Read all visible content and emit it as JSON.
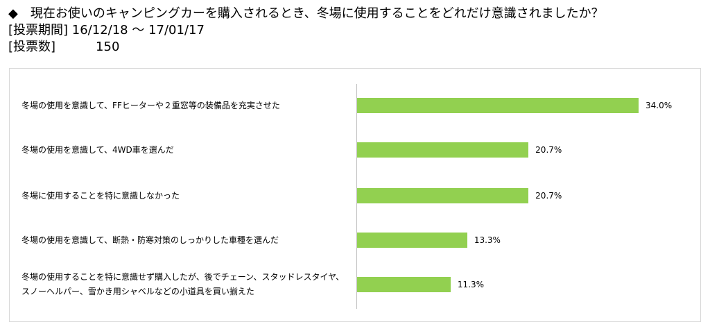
{
  "header": {
    "question": "◆　現在お使いのキャンピングカーを購入されるとき、冬場に使用することをどれだけ意識されましたか？",
    "period_label": "[投票期間]",
    "period_value": "16/12/18 ～ 17/01/17",
    "votes_label": "[投票数]",
    "votes_value": "150"
  },
  "chart_data": {
    "type": "bar",
    "orientation": "horizontal",
    "categories": [
      "冬場の使用を意識して、FFヒーターや２重窓等の装備品を充実させた",
      "冬場の使用を意識して、4WD車を選んだ",
      "冬場に使用することを特に意識しなかった",
      "冬場の使用を意識して、断熱・防寒対策のしっかりした車種を選んだ",
      "冬場の使用することを特に意識せず購入したが、後でチェーン、スタッドレスタイヤ、スノーヘルパー、雪かき用シャベルなどの小道具を買い揃えた"
    ],
    "values": [
      34.0,
      20.7,
      20.7,
      13.3,
      11.3
    ],
    "value_labels": [
      "34.0%",
      "20.7%",
      "20.7%",
      "13.3%",
      "11.3%"
    ],
    "bar_color": "#92d050",
    "xlim": [
      0,
      34.0
    ],
    "grid": false,
    "legend": false
  }
}
